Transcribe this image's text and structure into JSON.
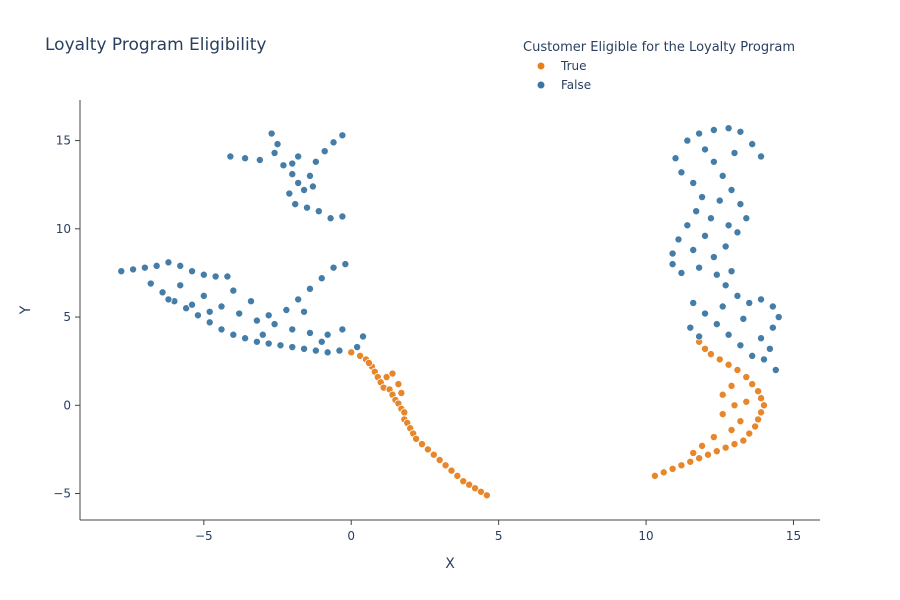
{
  "chart_data": {
    "type": "scatter",
    "title": "Loyalty Program Eligibility",
    "xlabel": "X",
    "ylabel": "Y",
    "xlim": [
      -9.2,
      15.9
    ],
    "ylim": [
      -6.5,
      17.3
    ],
    "x_ticks": [
      -5,
      0,
      5,
      10,
      15
    ],
    "y_ticks": [
      -5,
      0,
      5,
      10,
      15
    ],
    "x_tick_labels": [
      "−5",
      "0",
      "5",
      "10",
      "15"
    ],
    "y_tick_labels": [
      "−5",
      "0",
      "5",
      "10",
      "15"
    ],
    "grid": false,
    "legend": {
      "title": "Customer Eligible for the Loyalty Program",
      "placement": "top-right"
    },
    "series": [
      {
        "name": "True",
        "color": "#e6801f",
        "points": [
          [
            0.0,
            3.0
          ],
          [
            0.3,
            2.8
          ],
          [
            0.5,
            2.6
          ],
          [
            0.7,
            2.2
          ],
          [
            0.8,
            1.9
          ],
          [
            0.9,
            1.6
          ],
          [
            1.0,
            1.3
          ],
          [
            1.1,
            1.0
          ],
          [
            1.3,
            0.9
          ],
          [
            1.4,
            0.6
          ],
          [
            1.5,
            0.3
          ],
          [
            1.6,
            0.1
          ],
          [
            1.7,
            -0.2
          ],
          [
            1.8,
            -0.4
          ],
          [
            1.8,
            -0.8
          ],
          [
            1.9,
            -1.0
          ],
          [
            2.0,
            -1.3
          ],
          [
            2.1,
            -1.6
          ],
          [
            2.2,
            -1.9
          ],
          [
            2.4,
            -2.2
          ],
          [
            2.6,
            -2.5
          ],
          [
            2.8,
            -2.8
          ],
          [
            3.0,
            -3.1
          ],
          [
            3.2,
            -3.4
          ],
          [
            3.4,
            -3.7
          ],
          [
            3.6,
            -4.0
          ],
          [
            3.8,
            -4.3
          ],
          [
            4.0,
            -4.5
          ],
          [
            4.2,
            -4.7
          ],
          [
            4.4,
            -4.9
          ],
          [
            4.6,
            -5.1
          ],
          [
            1.6,
            1.2
          ],
          [
            1.2,
            1.6
          ],
          [
            0.6,
            2.4
          ],
          [
            1.4,
            1.8
          ],
          [
            1.7,
            0.7
          ],
          [
            10.3,
            -4.0
          ],
          [
            10.6,
            -3.8
          ],
          [
            10.9,
            -3.6
          ],
          [
            11.2,
            -3.4
          ],
          [
            11.5,
            -3.2
          ],
          [
            11.8,
            -3.0
          ],
          [
            12.1,
            -2.8
          ],
          [
            12.4,
            -2.6
          ],
          [
            12.7,
            -2.4
          ],
          [
            13.0,
            -2.2
          ],
          [
            13.3,
            -2.0
          ],
          [
            13.5,
            -1.6
          ],
          [
            13.7,
            -1.2
          ],
          [
            13.8,
            -0.8
          ],
          [
            13.9,
            -0.4
          ],
          [
            14.0,
            0.0
          ],
          [
            13.9,
            0.4
          ],
          [
            13.8,
            0.8
          ],
          [
            13.6,
            1.2
          ],
          [
            13.4,
            1.6
          ],
          [
            13.1,
            2.0
          ],
          [
            12.8,
            2.3
          ],
          [
            12.5,
            2.6
          ],
          [
            12.2,
            2.9
          ],
          [
            12.0,
            3.2
          ],
          [
            11.8,
            3.6
          ],
          [
            12.6,
            0.6
          ],
          [
            12.9,
            1.1
          ],
          [
            13.2,
            -0.9
          ],
          [
            12.9,
            -1.4
          ],
          [
            12.3,
            -1.8
          ],
          [
            11.9,
            -2.3
          ],
          [
            13.4,
            0.2
          ],
          [
            12.6,
            -0.5
          ],
          [
            13.0,
            0.0
          ],
          [
            11.6,
            -2.7
          ]
        ]
      },
      {
        "name": "False",
        "color": "#3a76a3",
        "points": [
          [
            -7.8,
            7.6
          ],
          [
            -7.4,
            7.7
          ],
          [
            -7.0,
            7.8
          ],
          [
            -6.6,
            7.9
          ],
          [
            -6.2,
            8.1
          ],
          [
            -5.8,
            7.9
          ],
          [
            -5.4,
            7.6
          ],
          [
            -5.0,
            7.4
          ],
          [
            -4.6,
            7.3
          ],
          [
            -4.2,
            7.3
          ],
          [
            -6.8,
            6.9
          ],
          [
            -6.4,
            6.4
          ],
          [
            -6.0,
            5.9
          ],
          [
            -5.6,
            5.5
          ],
          [
            -5.2,
            5.1
          ],
          [
            -4.8,
            4.7
          ],
          [
            -4.4,
            4.3
          ],
          [
            -4.0,
            4.0
          ],
          [
            -3.6,
            3.8
          ],
          [
            -3.2,
            3.6
          ],
          [
            -2.8,
            3.5
          ],
          [
            -2.4,
            3.4
          ],
          [
            -2.0,
            3.3
          ],
          [
            -1.6,
            3.2
          ],
          [
            -1.2,
            3.1
          ],
          [
            -0.8,
            3.0
          ],
          [
            -0.4,
            3.1
          ],
          [
            -5.8,
            6.8
          ],
          [
            -5.0,
            6.2
          ],
          [
            -4.4,
            5.6
          ],
          [
            -3.8,
            5.2
          ],
          [
            -3.2,
            4.8
          ],
          [
            -2.6,
            4.6
          ],
          [
            -2.0,
            4.3
          ],
          [
            -1.4,
            4.1
          ],
          [
            -0.8,
            4.0
          ],
          [
            -0.3,
            4.3
          ],
          [
            -2.2,
            5.4
          ],
          [
            -1.8,
            6.0
          ],
          [
            -1.4,
            6.6
          ],
          [
            -1.0,
            7.2
          ],
          [
            -0.6,
            7.8
          ],
          [
            -0.2,
            8.0
          ],
          [
            -2.8,
            5.1
          ],
          [
            -3.4,
            5.9
          ],
          [
            -4.0,
            6.5
          ],
          [
            -5.4,
            5.7
          ],
          [
            -6.2,
            6.0
          ],
          [
            -4.8,
            5.3
          ],
          [
            -3.0,
            4.0
          ],
          [
            -1.0,
            3.6
          ],
          [
            0.2,
            3.3
          ],
          [
            0.4,
            3.9
          ],
          [
            -1.6,
            5.3
          ],
          [
            -4.1,
            14.1
          ],
          [
            -3.6,
            14.0
          ],
          [
            -3.1,
            13.9
          ],
          [
            -2.6,
            14.3
          ],
          [
            -2.7,
            15.4
          ],
          [
            -2.5,
            14.8
          ],
          [
            -2.3,
            13.6
          ],
          [
            -2.0,
            13.1
          ],
          [
            -1.8,
            12.6
          ],
          [
            -2.1,
            12.0
          ],
          [
            -1.9,
            11.4
          ],
          [
            -1.5,
            11.2
          ],
          [
            -1.1,
            11.0
          ],
          [
            -0.7,
            10.6
          ],
          [
            -0.3,
            10.7
          ],
          [
            -1.6,
            12.2
          ],
          [
            -1.4,
            13.0
          ],
          [
            -1.2,
            13.8
          ],
          [
            -0.9,
            14.4
          ],
          [
            -0.6,
            14.9
          ],
          [
            -0.3,
            15.3
          ],
          [
            -1.8,
            14.1
          ],
          [
            -2.0,
            13.7
          ],
          [
            -1.3,
            12.4
          ],
          [
            11.0,
            14.0
          ],
          [
            11.4,
            15.0
          ],
          [
            11.8,
            15.4
          ],
          [
            12.3,
            15.6
          ],
          [
            12.8,
            15.7
          ],
          [
            13.2,
            15.5
          ],
          [
            13.6,
            14.8
          ],
          [
            13.9,
            14.1
          ],
          [
            11.2,
            13.2
          ],
          [
            11.6,
            12.6
          ],
          [
            11.9,
            11.8
          ],
          [
            11.7,
            11.0
          ],
          [
            11.4,
            10.2
          ],
          [
            11.1,
            9.4
          ],
          [
            10.9,
            8.6
          ],
          [
            10.9,
            8.0
          ],
          [
            11.2,
            7.5
          ],
          [
            11.8,
            7.8
          ],
          [
            12.3,
            8.4
          ],
          [
            12.7,
            9.0
          ],
          [
            13.1,
            9.8
          ],
          [
            13.4,
            10.6
          ],
          [
            13.2,
            11.4
          ],
          [
            12.9,
            12.2
          ],
          [
            12.6,
            13.0
          ],
          [
            12.3,
            13.8
          ],
          [
            12.0,
            14.5
          ],
          [
            13.0,
            14.3
          ],
          [
            12.5,
            11.6
          ],
          [
            12.2,
            10.6
          ],
          [
            12.0,
            9.6
          ],
          [
            12.4,
            7.4
          ],
          [
            12.7,
            6.8
          ],
          [
            13.1,
            6.2
          ],
          [
            13.5,
            5.8
          ],
          [
            13.9,
            6.0
          ],
          [
            14.3,
            5.6
          ],
          [
            14.5,
            5.0
          ],
          [
            14.3,
            4.4
          ],
          [
            13.9,
            3.8
          ],
          [
            14.2,
            3.2
          ],
          [
            14.0,
            2.6
          ],
          [
            14.4,
            2.0
          ],
          [
            13.6,
            2.8
          ],
          [
            13.2,
            3.4
          ],
          [
            12.8,
            4.0
          ],
          [
            12.4,
            4.6
          ],
          [
            12.0,
            5.2
          ],
          [
            11.6,
            5.8
          ],
          [
            11.5,
            4.4
          ],
          [
            11.8,
            3.9
          ],
          [
            12.6,
            5.6
          ],
          [
            13.3,
            4.9
          ],
          [
            12.9,
            7.6
          ],
          [
            11.6,
            8.8
          ],
          [
            12.8,
            10.2
          ]
        ]
      }
    ]
  }
}
